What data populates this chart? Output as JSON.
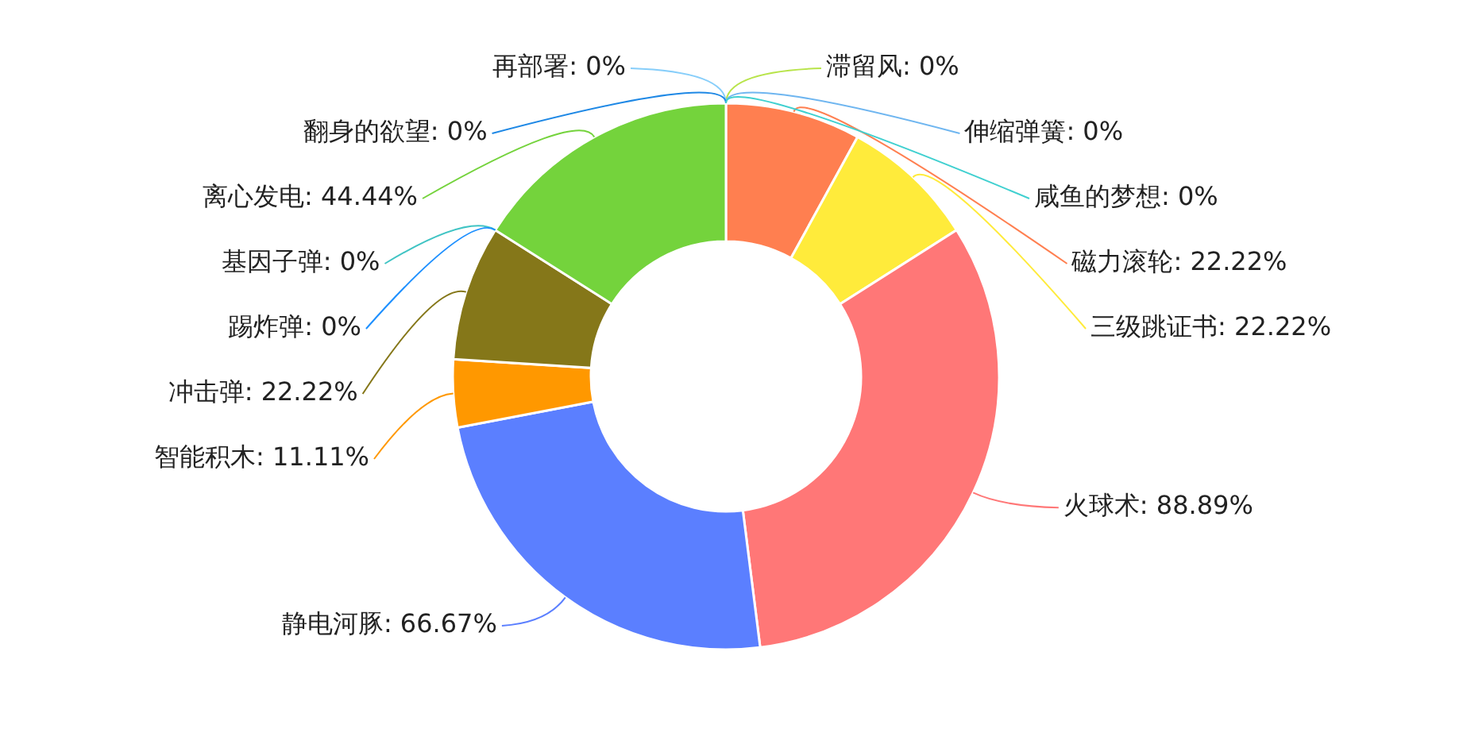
{
  "chart_data": {
    "type": "donut",
    "categories": [
      "磁力滚轮",
      "三级跳证书",
      "火球术",
      "静电河豚",
      "智能积木",
      "冲击弹",
      "基因子弹",
      "踢炸弹",
      "离心发电",
      "滞留风",
      "再部署",
      "伸缩弹簧",
      "翻身的欲望",
      "咸鱼的梦想"
    ],
    "values": [
      22.22,
      22.22,
      88.89,
      66.67,
      11.11,
      22.22,
      0,
      0,
      44.44,
      0,
      0,
      0,
      0,
      0
    ],
    "value_labels": [
      ": 22.22%",
      ": 22.22%",
      ": 88.89%",
      ": 66.67%",
      ": 11.11%",
      ": 22.22%",
      ": 0%",
      ": 0%",
      ": 44.44%",
      ": 0%",
      ": 0%",
      ": 0%",
      ": 0%",
      ": 0%"
    ],
    "colors": [
      "#ff7f50",
      "#ffeb3b",
      "#ff7777",
      "#5b7fff",
      "#ff9800",
      "#857719",
      "#40c4c4",
      "#1e90ff",
      "#74d33c",
      "#b8e44a",
      "#87cefa",
      "#6fb6f0",
      "#1e88e5",
      "#40d0d0"
    ]
  }
}
